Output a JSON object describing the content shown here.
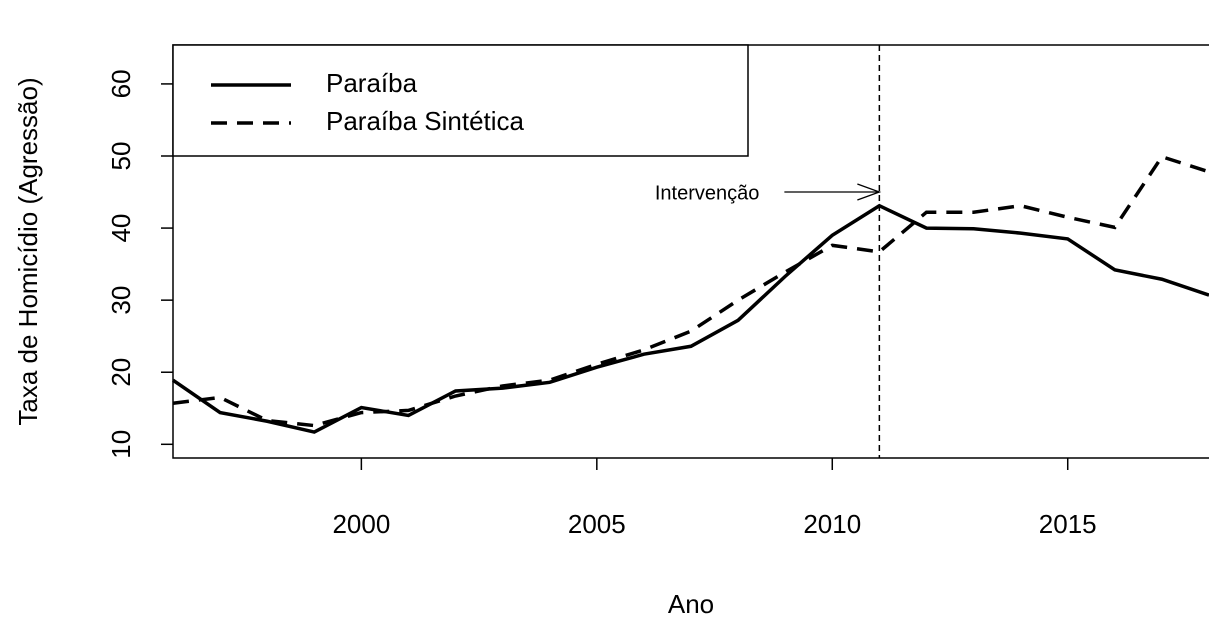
{
  "chart_data": {
    "type": "line",
    "x_label": "Ano",
    "y_label": "Taxa de Homicídio (Agressão)",
    "x": [
      1996,
      1997,
      1998,
      1999,
      2000,
      2001,
      2002,
      2003,
      2004,
      2005,
      2006,
      2007,
      2008,
      2009,
      2010,
      2011,
      2012,
      2013,
      2014,
      2015,
      2016,
      2017,
      2018
    ],
    "series": [
      {
        "name": "Paraíba",
        "color": "#000000",
        "dash": "solid",
        "values": [
          18.9,
          14.4,
          13.2,
          11.7,
          15.1,
          14.0,
          17.4,
          17.8,
          18.6,
          20.7,
          22.5,
          23.6,
          27.2,
          33.3,
          39.0,
          43.1,
          40.0,
          39.9,
          39.3,
          38.5,
          34.2,
          32.9,
          30.7
        ]
      },
      {
        "name": "Paraíba Sintética",
        "color": "#000000",
        "dash": "dashed",
        "values": [
          15.7,
          16.5,
          13.3,
          12.6,
          14.4,
          14.7,
          16.7,
          18.1,
          18.9,
          21.1,
          23.1,
          25.7,
          30.0,
          33.9,
          37.6,
          36.7,
          42.2,
          42.2,
          43.1,
          41.5,
          40.1,
          49.9,
          47.8
        ]
      }
    ],
    "xlim": [
      1996,
      2018
    ],
    "xticks": [
      2000,
      2005,
      2010,
      2015
    ],
    "ylim": [
      8.1,
      65.4
    ],
    "yticks": [
      10,
      20,
      30,
      40,
      50,
      60
    ],
    "vline": 2011,
    "annotation": {
      "text": "Intervenção",
      "x": 2011,
      "y": 45
    },
    "legend": "top-left"
  }
}
